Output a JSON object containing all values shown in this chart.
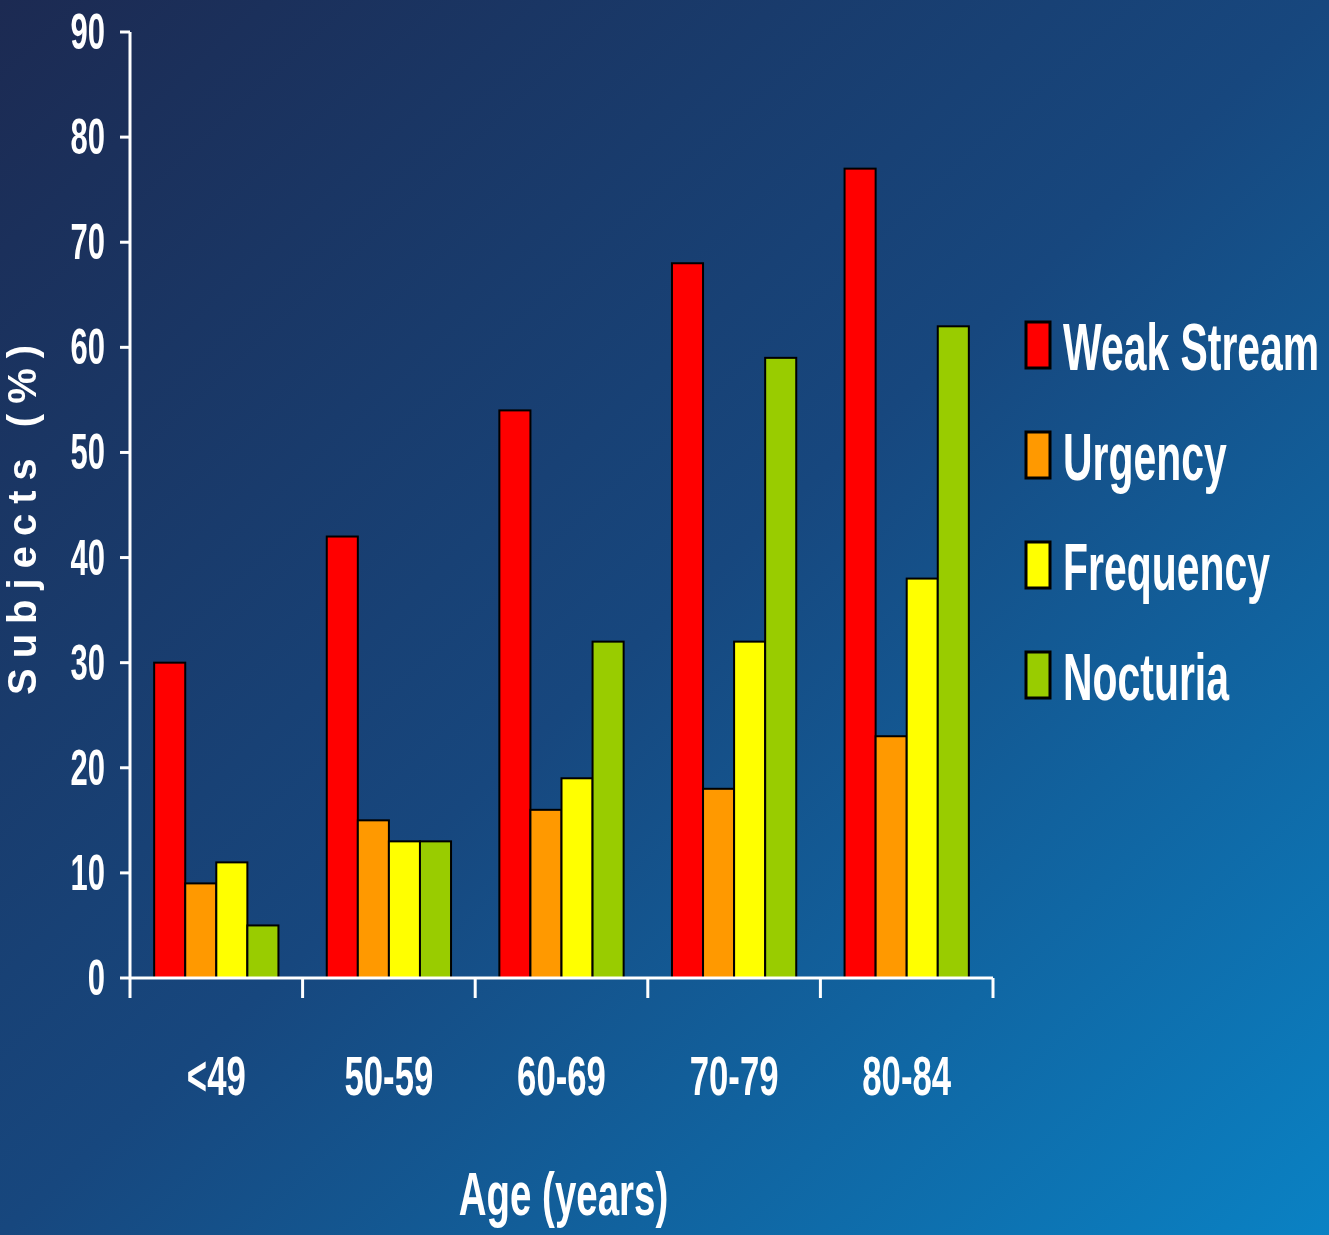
{
  "chart_data": {
    "type": "bar",
    "xlabel": "Age (years)",
    "ylabel": "Subjects (%)",
    "categories": [
      "<49",
      "50-59",
      "60-69",
      "70-79",
      "80-84"
    ],
    "series": [
      {
        "name": "Weak Stream",
        "color": "#ff0000",
        "values": [
          30,
          42,
          54,
          68,
          77
        ]
      },
      {
        "name": "Urgency",
        "color": "#ff9900",
        "values": [
          9,
          15,
          16,
          18,
          23
        ]
      },
      {
        "name": "Frequency",
        "color": "#ffff00",
        "values": [
          11,
          13,
          19,
          32,
          38
        ]
      },
      {
        "name": "Nocturia",
        "color": "#99cc00",
        "values": [
          5,
          13,
          32,
          59,
          62
        ]
      }
    ],
    "ylim": [
      0,
      90
    ],
    "yticks": [
      0,
      10,
      20,
      30,
      40,
      50,
      60,
      70,
      80,
      90
    ],
    "grid": false,
    "legend": "right"
  }
}
